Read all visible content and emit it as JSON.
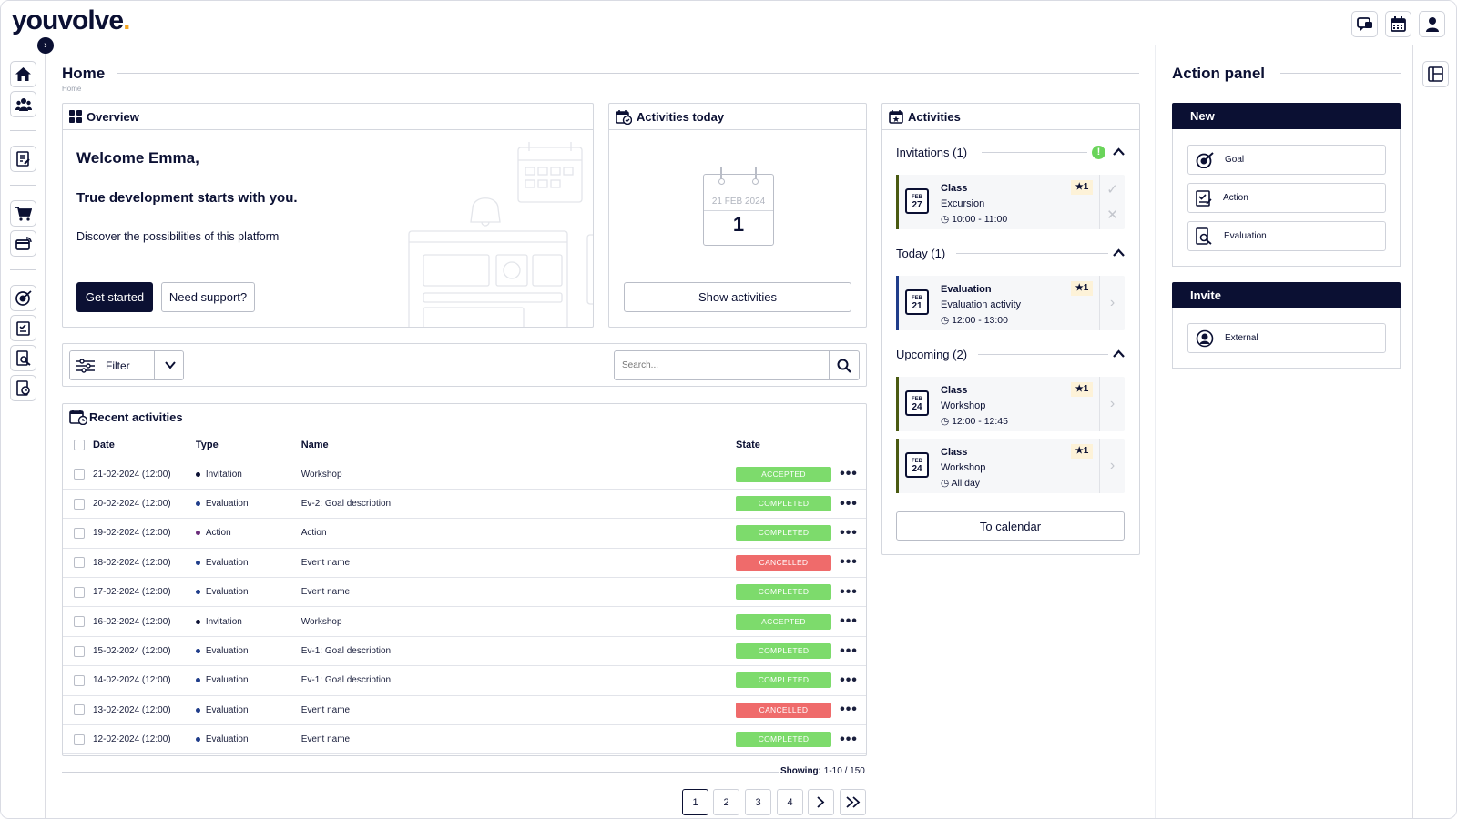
{
  "app": {
    "logo_text": "youvolve",
    "logo_dot": "."
  },
  "topbar": {
    "icons": [
      "chat-icon",
      "calendar-icon",
      "user-icon"
    ]
  },
  "page": {
    "title": "Home",
    "breadcrumb": "Home"
  },
  "overview": {
    "title": "Overview",
    "welcome": "Welcome Emma,",
    "tagline": "True development starts with you.",
    "discover": "Discover the possibilities of this platform",
    "get_started": "Get started",
    "need_support": "Need support?"
  },
  "today_card": {
    "title": "Activities today",
    "cal_date": "21 FEB 2024",
    "cal_count": "1",
    "show_btn": "Show activities"
  },
  "filter": {
    "label": "Filter",
    "search_placeholder": "Search..."
  },
  "recent": {
    "title": "Recent activities",
    "columns": [
      "Date",
      "Type",
      "Name",
      "State"
    ],
    "rows": [
      {
        "date": "21-02-2024 (12:00)",
        "type": "Invitation",
        "name": "Workshop",
        "state": "ACCEPTED",
        "color": "#7ddb6c",
        "dot": "#0b1033"
      },
      {
        "date": "20-02-2024 (12:00)",
        "type": "Evaluation",
        "name": "Ev-2: Goal description",
        "state": "COMPLETED",
        "color": "#7ddb6c",
        "dot": "#1f3d8a"
      },
      {
        "date": "19-02-2024 (12:00)",
        "type": "Action",
        "name": "Action",
        "state": "COMPLETED",
        "color": "#7ddb6c",
        "dot": "#6b2d7a"
      },
      {
        "date": "18-02-2024 (12:00)",
        "type": "Evaluation",
        "name": "Event name",
        "state": "CANCELLED",
        "color": "#ef6b6b",
        "dot": "#1f3d8a"
      },
      {
        "date": "17-02-2024 (12:00)",
        "type": "Evaluation",
        "name": "Event name",
        "state": "COMPLETED",
        "color": "#7ddb6c",
        "dot": "#1f3d8a"
      },
      {
        "date": "16-02-2024 (12:00)",
        "type": "Invitation",
        "name": "Workshop",
        "state": "ACCEPTED",
        "color": "#7ddb6c",
        "dot": "#0b1033"
      },
      {
        "date": "15-02-2024 (12:00)",
        "type": "Evaluation",
        "name": "Ev-1: Goal description",
        "state": "COMPLETED",
        "color": "#7ddb6c",
        "dot": "#1f3d8a"
      },
      {
        "date": "14-02-2024 (12:00)",
        "type": "Evaluation",
        "name": "Ev-1: Goal description",
        "state": "COMPLETED",
        "color": "#7ddb6c",
        "dot": "#1f3d8a"
      },
      {
        "date": "13-02-2024 (12:00)",
        "type": "Evaluation",
        "name": "Event name",
        "state": "CANCELLED",
        "color": "#ef6b6b",
        "dot": "#1f3d8a"
      },
      {
        "date": "12-02-2024 (12:00)",
        "type": "Evaluation",
        "name": "Event name",
        "state": "COMPLETED",
        "color": "#7ddb6c",
        "dot": "#1f3d8a"
      }
    ],
    "showing_label": "Showing:",
    "showing_value": "1-10 / 150",
    "pages": [
      "1",
      "2",
      "3",
      "4"
    ]
  },
  "activities": {
    "title": "Activities",
    "invitations": {
      "header": "Invitations (1)",
      "items": [
        {
          "kind": "Class",
          "sub": "Excursion",
          "time": "10:00 - 11:00",
          "month": "FEB",
          "day": "27",
          "stars": "1",
          "bar": "#4a5a12"
        }
      ]
    },
    "today": {
      "header": "Today (1)",
      "items": [
        {
          "kind": "Evaluation",
          "sub": "Evaluation activity",
          "time": "12:00 - 13:00",
          "month": "FEB",
          "day": "21",
          "stars": "1",
          "bar": "#1f3d8a"
        }
      ]
    },
    "upcoming": {
      "header": "Upcoming (2)",
      "items": [
        {
          "kind": "Class",
          "sub": "Workshop",
          "time": "12:00 - 12:45",
          "month": "FEB",
          "day": "24",
          "stars": "1",
          "bar": "#4a5a12"
        },
        {
          "kind": "Class",
          "sub": "Workshop",
          "time": "All day",
          "month": "FEB",
          "day": "24",
          "stars": "1",
          "bar": "#4a5a12"
        }
      ]
    },
    "calendar_btn": "To calendar"
  },
  "action_panel": {
    "title": "Action panel",
    "new_header": "New",
    "new_items": [
      "Goal",
      "Action",
      "Evaluation"
    ],
    "invite_header": "Invite",
    "invite_items": [
      "External"
    ]
  },
  "colors": {
    "brand": "#0b1033",
    "accent": "#f5a623",
    "success": "#7ddb6c",
    "danger": "#ef6b6b",
    "alert": "#6ad45a"
  }
}
